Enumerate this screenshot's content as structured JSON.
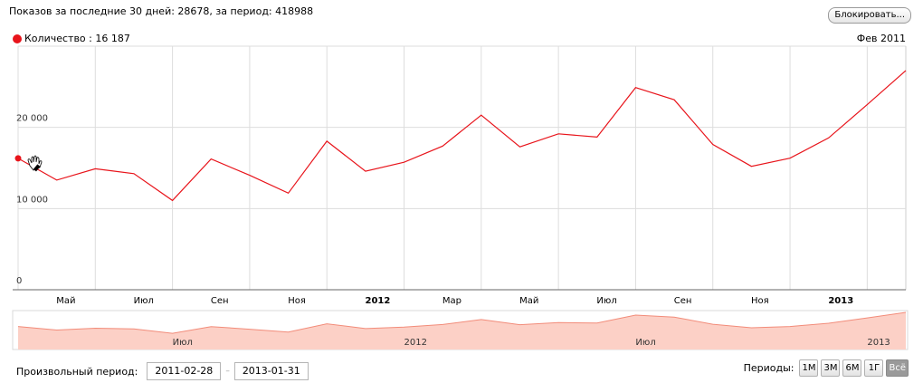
{
  "stats_text": "Показов за последние 30 дней: 28678, за период: 418988",
  "block_button": "Блокировать...",
  "legend": {
    "label": "Количество : 16 187",
    "date": "Фев 2011"
  },
  "colors": {
    "line": "#e8141b",
    "area_fill": "#fcd0c6",
    "area_stroke": "#f28c7a",
    "grid": "#dddddd"
  },
  "chart_data": {
    "type": "line",
    "series": [
      {
        "name": "Количество",
        "values": [
          16187,
          13500,
          14900,
          14300,
          11000,
          16100,
          14100,
          11900,
          18300,
          14600,
          15700,
          17700,
          21500,
          17600,
          19200,
          18800,
          24900,
          23400,
          17900,
          15200,
          16200,
          18700,
          22800,
          27000
        ]
      }
    ],
    "ylim": [
      0,
      30000
    ],
    "y_ticks": [
      {
        "value": 0,
        "label": "0"
      },
      {
        "value": 10000,
        "label": "10 000"
      },
      {
        "value": 20000,
        "label": "20 000"
      }
    ],
    "x_ticks": [
      {
        "index": 0,
        "label": "Мар",
        "bold": false
      },
      {
        "index": 2,
        "label": "Май",
        "bold": false
      },
      {
        "index": 4,
        "label": "Июл",
        "bold": false
      },
      {
        "index": 6,
        "label": "Сен",
        "bold": false
      },
      {
        "index": 8,
        "label": "Ноя",
        "bold": false
      },
      {
        "index": 10,
        "label": "2012",
        "bold": true
      },
      {
        "index": 12,
        "label": "Мар",
        "bold": false
      },
      {
        "index": 14,
        "label": "Май",
        "bold": false
      },
      {
        "index": 16,
        "label": "Июл",
        "bold": false
      },
      {
        "index": 18,
        "label": "Сен",
        "bold": false
      },
      {
        "index": 20,
        "label": "Ноя",
        "bold": false
      },
      {
        "index": 22,
        "label": "2013",
        "bold": true
      }
    ],
    "navigator_labels": [
      {
        "index": 4,
        "label": "Июл"
      },
      {
        "index": 10,
        "label": "2012"
      },
      {
        "index": 16,
        "label": "Июл"
      },
      {
        "index": 22,
        "label": "2013"
      }
    ],
    "grid": true
  },
  "footer": {
    "custom_period_label": "Произвольный период:",
    "date_from": "2011-02-28",
    "date_to": "2013-01-31",
    "periods_label": "Периоды:",
    "period_buttons": [
      "1М",
      "3М",
      "6М",
      "1Г",
      "Всё"
    ],
    "active_period": "Всё"
  }
}
